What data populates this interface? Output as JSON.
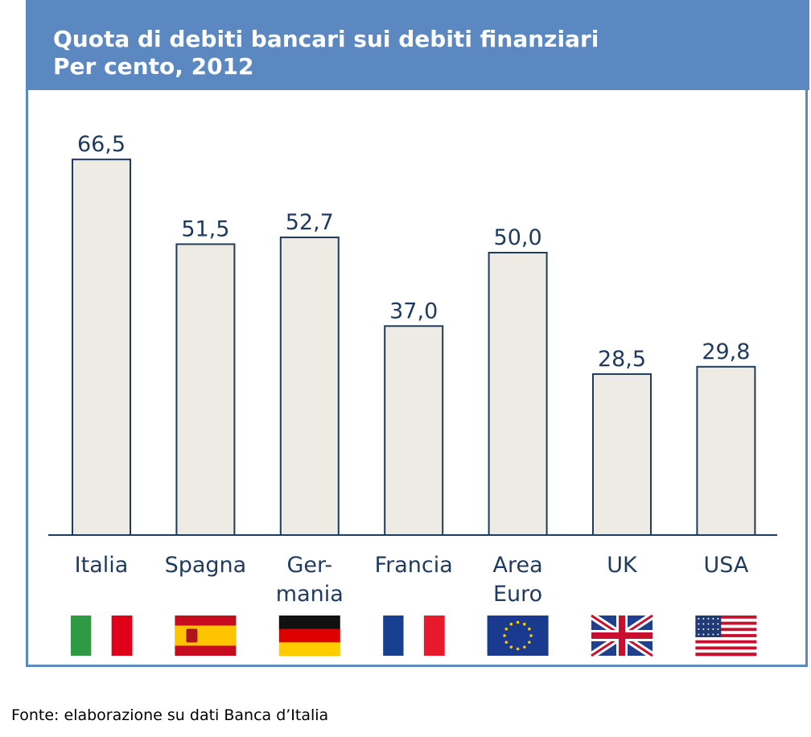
{
  "chart_data": {
    "type": "bar",
    "title": "Quota di debiti bancari sui debiti finanziari",
    "subtitle": "Per cento, 2012",
    "categories": [
      "Italia",
      "Spagna",
      "Ger-\nmania",
      "Francia",
      "Area\nEuro",
      "UK",
      "USA"
    ],
    "values": [
      66.5,
      51.5,
      52.7,
      37.0,
      50.0,
      28.5,
      29.8
    ],
    "value_labels": [
      "66,5",
      "51,5",
      "52,7",
      "37,0",
      "50,0",
      "28,5",
      "29,8"
    ],
    "xlabel": "",
    "ylabel": "",
    "ylim": [
      0,
      75
    ],
    "grid": false,
    "legend": "none",
    "flags": [
      "italy-flag",
      "spain-flag",
      "germany-flag",
      "france-flag",
      "eu-flag",
      "uk-flag",
      "usa-flag"
    ]
  },
  "source": "Fonte: elaborazione su dati Banca d’Italia",
  "colors": {
    "header": "#5b88c0",
    "bar_fill": "#eeebe4",
    "bar_stroke": "#1f3a5f",
    "label_text": "#1f3a5f",
    "axis": "#1f3a5f"
  }
}
